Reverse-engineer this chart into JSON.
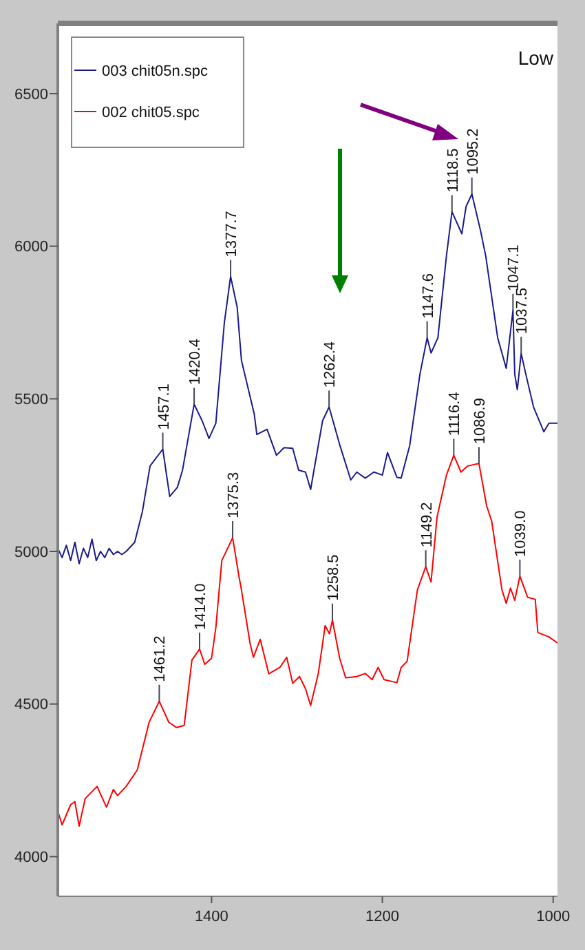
{
  "chart_data": {
    "type": "line",
    "xlim": [
      1580,
      995
    ],
    "xticks": [
      1400,
      1200,
      1000
    ],
    "ylim": [
      3870,
      6730
    ],
    "yticks": [
      4000,
      4500,
      5000,
      5500,
      6000,
      6500
    ],
    "legend": "top left",
    "series": [
      {
        "name": "003 chit05n.spc",
        "color": "#1a1a8c",
        "x": [
          1580,
          1575,
          1570,
          1565,
          1560,
          1555,
          1550,
          1545,
          1540,
          1535,
          1530,
          1525,
          1520,
          1515,
          1510,
          1505,
          1500,
          1490,
          1481,
          1472,
          1457.1,
          1449,
          1440,
          1434,
          1420.4,
          1411,
          1403,
          1395,
          1385,
          1377.7,
          1370,
          1365,
          1350,
          1347,
          1335,
          1324,
          1315,
          1305,
          1298,
          1290,
          1284,
          1270,
          1262.4,
          1250,
          1237,
          1230,
          1220,
          1210,
          1200,
          1194,
          1183,
          1178,
          1168,
          1156,
          1147.6,
          1143,
          1135,
          1125,
          1118.5,
          1107,
          1102,
          1095.2,
          1085,
          1079,
          1065,
          1055,
          1047.1,
          1045,
          1042,
          1037.5,
          1032,
          1023,
          1011,
          1005,
          995
        ],
        "values": [
          5010,
          4980,
          5020,
          4970,
          5030,
          4960,
          5010,
          4980,
          5040,
          4970,
          5000,
          4980,
          5010,
          4990,
          5000,
          4990,
          5000,
          5030,
          5130,
          5280,
          5335,
          5180,
          5210,
          5266,
          5482,
          5428,
          5370,
          5420,
          5750,
          5901,
          5800,
          5626,
          5450,
          5383,
          5400,
          5315,
          5340,
          5338,
          5266,
          5260,
          5203,
          5428,
          5473,
          5350,
          5234,
          5260,
          5240,
          5260,
          5250,
          5324,
          5243,
          5240,
          5347,
          5581,
          5700,
          5650,
          5700,
          5968,
          6113,
          6041,
          6130,
          6171,
          6050,
          5968,
          5700,
          5600,
          5790,
          5580,
          5530,
          5649,
          5580,
          5473,
          5392,
          5420,
          5420
        ]
      },
      {
        "name": "002 chit05.spc",
        "color": "#ff0000",
        "x": [
          1580,
          1575,
          1565,
          1560,
          1555,
          1548,
          1534,
          1523,
          1515,
          1510,
          1500,
          1487,
          1473,
          1461.2,
          1450,
          1441,
          1432,
          1423,
          1414,
          1408,
          1400,
          1395,
          1388,
          1375.3,
          1368,
          1365,
          1355,
          1351,
          1343,
          1333,
          1320,
          1312,
          1305,
          1297,
          1290,
          1284,
          1275,
          1267,
          1262,
          1258.5,
          1250,
          1243,
          1230,
          1220,
          1212,
          1205,
          1198,
          1183,
          1178,
          1171,
          1159,
          1149.2,
          1143,
          1136,
          1125,
          1116.4,
          1108,
          1100,
          1086.9,
          1078,
          1072,
          1060,
          1055,
          1050,
          1045,
          1039,
          1030,
          1021,
          1018,
          1005,
          995
        ],
        "values": [
          4149,
          4104,
          4170,
          4180,
          4100,
          4190,
          4230,
          4162,
          4220,
          4200,
          4230,
          4284,
          4441,
          4509,
          4440,
          4423,
          4430,
          4644,
          4680,
          4630,
          4650,
          4750,
          4970,
          5045,
          4920,
          4874,
          4700,
          4653,
          4712,
          4599,
          4620,
          4653,
          4568,
          4590,
          4550,
          4495,
          4600,
          4757,
          4730,
          4775,
          4650,
          4586,
          4590,
          4600,
          4580,
          4620,
          4580,
          4570,
          4620,
          4640,
          4874,
          4950,
          4900,
          5113,
          5250,
          5315,
          5260,
          5280,
          5288,
          5150,
          5099,
          4874,
          4830,
          4880,
          4840,
          4919,
          4850,
          4843,
          4734,
          4720,
          4700
        ]
      }
    ],
    "annotations": [
      {
        "text": "1457.1",
        "x": 1457.1,
        "y": 5335
      },
      {
        "text": "1420.4",
        "x": 1420.4,
        "y": 5482
      },
      {
        "text": "1377.7",
        "x": 1377.7,
        "y": 5901
      },
      {
        "text": "1262.4",
        "x": 1262.4,
        "y": 5473
      },
      {
        "text": "1147.6",
        "x": 1147.6,
        "y": 5700
      },
      {
        "text": "1118.5",
        "x": 1118.5,
        "y": 6113
      },
      {
        "text": "1095.2",
        "x": 1095.2,
        "y": 6171
      },
      {
        "text": "1047.1",
        "x": 1047.1,
        "y": 5790
      },
      {
        "text": "1037.5",
        "x": 1037.5,
        "y": 5649
      },
      {
        "text": "1461.2",
        "x": 1461.2,
        "y": 4509
      },
      {
        "text": "1414.0",
        "x": 1414,
        "y": 4680
      },
      {
        "text": "1375.3",
        "x": 1375.3,
        "y": 5045
      },
      {
        "text": "1258.5",
        "x": 1258.5,
        "y": 4775
      },
      {
        "text": "1149.2",
        "x": 1149.2,
        "y": 4950
      },
      {
        "text": "1116.4",
        "x": 1116.4,
        "y": 5315
      },
      {
        "text": "1086.9",
        "x": 1086.9,
        "y": 5288
      },
      {
        "text": "1039.0",
        "x": 1039,
        "y": 4919
      },
      "Low"
    ]
  }
}
